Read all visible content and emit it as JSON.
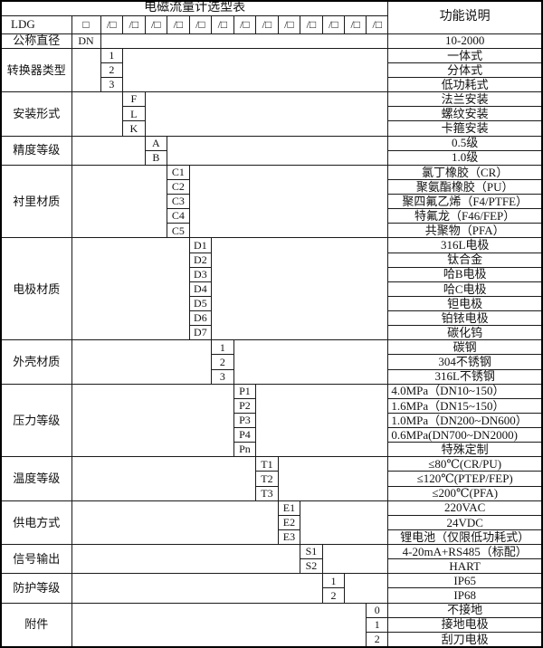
{
  "title": "电磁流量计选型表",
  "function_header": "功能说明",
  "model_row": {
    "prefix": "LDG",
    "first_box": "□",
    "slot_box": "/□",
    "slot_count": 13
  },
  "code_columns_total": 14,
  "sections": [
    {
      "label": "公称直径",
      "col": 0,
      "rows": [
        {
          "code": "DN",
          "desc": "10-2000"
        }
      ]
    },
    {
      "label": "转换器类型",
      "col": 1,
      "rows": [
        {
          "code": "1",
          "desc": "一体式"
        },
        {
          "code": "2",
          "desc": "分体式"
        },
        {
          "code": "3",
          "desc": "低功耗式"
        }
      ]
    },
    {
      "label": "安装形式",
      "col": 2,
      "rows": [
        {
          "code": "F",
          "desc": "法兰安装"
        },
        {
          "code": "L",
          "desc": "螺纹安装"
        },
        {
          "code": "K",
          "desc": "卡箍安装"
        }
      ]
    },
    {
      "label": "精度等级",
      "col": 3,
      "rows": [
        {
          "code": "A",
          "desc": "0.5级"
        },
        {
          "code": "B",
          "desc": "1.0级"
        }
      ]
    },
    {
      "label": "衬里材质",
      "col": 4,
      "rows": [
        {
          "code": "C1",
          "desc": "氯丁橡胶（CR）"
        },
        {
          "code": "C2",
          "desc": "聚氨酯橡胶（PU）"
        },
        {
          "code": "C3",
          "desc": "聚四氟乙烯（F4/PTFE）"
        },
        {
          "code": "C4",
          "desc": "特氟龙（F46/FEP）"
        },
        {
          "code": "C5",
          "desc": "共聚物（PFA）"
        }
      ]
    },
    {
      "label": "电极材质",
      "col": 5,
      "rows": [
        {
          "code": "D1",
          "desc": "316L电极"
        },
        {
          "code": "D2",
          "desc": "钛合金"
        },
        {
          "code": "D3",
          "desc": "哈B电极"
        },
        {
          "code": "D4",
          "desc": "哈C电极"
        },
        {
          "code": "D5",
          "desc": "钽电极"
        },
        {
          "code": "D6",
          "desc": "铂铱电极"
        },
        {
          "code": "D7",
          "desc": "碳化钨"
        }
      ]
    },
    {
      "label": "外壳材质",
      "col": 6,
      "rows": [
        {
          "code": "1",
          "desc": "碳钢"
        },
        {
          "code": "2",
          "desc": "304不锈钢"
        },
        {
          "code": "3",
          "desc": "316L不锈钢"
        }
      ]
    },
    {
      "label": "压力等级",
      "col": 7,
      "rows": [
        {
          "code": "P1",
          "desc": "4.0MPa（DN10~150）",
          "align": "left"
        },
        {
          "code": "P2",
          "desc": "1.6MPa（DN15~150）",
          "align": "left"
        },
        {
          "code": "P3",
          "desc": "1.0MPa（DN200~DN600）",
          "align": "left"
        },
        {
          "code": "P4",
          "desc": "0.6MPa(DN700~DN2000)",
          "align": "left"
        },
        {
          "code": "Pn",
          "desc": "特殊定制"
        }
      ]
    },
    {
      "label": "温度等级",
      "col": 8,
      "rows": [
        {
          "code": "T1",
          "desc": "≤80℃(CR/PU)"
        },
        {
          "code": "T2",
          "desc": "≤120℃(PTEP/FEP)"
        },
        {
          "code": "T3",
          "desc": "≤200℃(PFA)"
        }
      ]
    },
    {
      "label": "供电方式",
      "col": 9,
      "rows": [
        {
          "code": "E1",
          "desc": "220VAC"
        },
        {
          "code": "E2",
          "desc": "24VDC"
        },
        {
          "code": "E3",
          "desc": "锂电池（仅限低功耗式）"
        }
      ]
    },
    {
      "label": "信号输出",
      "col": 10,
      "rows": [
        {
          "code": "S1",
          "desc": "4-20mA+RS485（标配）"
        },
        {
          "code": "S2",
          "desc": "HART"
        }
      ]
    },
    {
      "label": "防护等级",
      "col": 11,
      "rows": [
        {
          "code": "1",
          "desc": "IP65"
        },
        {
          "code": "2",
          "desc": "IP68"
        }
      ]
    },
    {
      "label": "附件",
      "col": 13,
      "rows": [
        {
          "code": "0",
          "desc": "不接地"
        },
        {
          "code": "1",
          "desc": "接地电极"
        },
        {
          "code": "2",
          "desc": "刮刀电极"
        }
      ]
    }
  ],
  "colors": {
    "border": "#1a1a1a",
    "background": "#ffffff",
    "text": "#121212"
  }
}
